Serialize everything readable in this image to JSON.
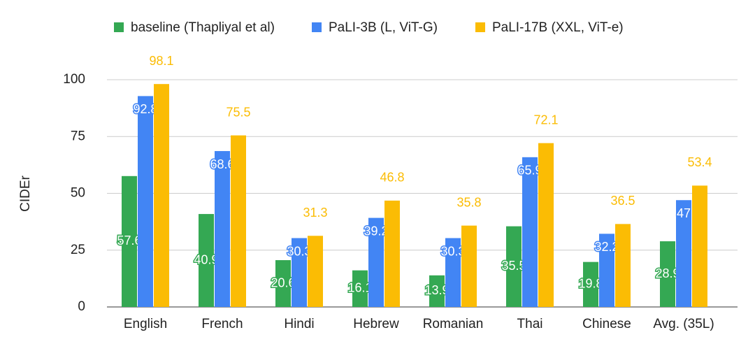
{
  "chart_data": {
    "type": "bar",
    "y_label": "CIDEr",
    "categories": [
      "English",
      "French",
      "Hindi",
      "Hebrew",
      "Romanian",
      "Thai",
      "Chinese",
      "Avg. (35L)"
    ],
    "series": [
      {
        "name": "baseline (Thapliyal et al)",
        "color": "#34a853",
        "values": [
          57.6,
          40.9,
          20.6,
          16.1,
          13.9,
          35.5,
          19.8,
          28.9
        ]
      },
      {
        "name": "PaLI-3B (L, ViT-G)",
        "color": "#4285f4",
        "values": [
          92.8,
          68.6,
          30.3,
          39.2,
          30.3,
          65.9,
          32.2,
          47
        ]
      },
      {
        "name": "PaLI-17B (XXL, ViT-e)",
        "color": "#fbbc04",
        "values": [
          98.1,
          75.5,
          31.3,
          46.8,
          35.8,
          72.1,
          36.5,
          53.4
        ]
      }
    ],
    "ylim": [
      0,
      100
    ],
    "yticks": [
      0,
      25,
      50,
      75,
      100
    ],
    "grid": true
  }
}
